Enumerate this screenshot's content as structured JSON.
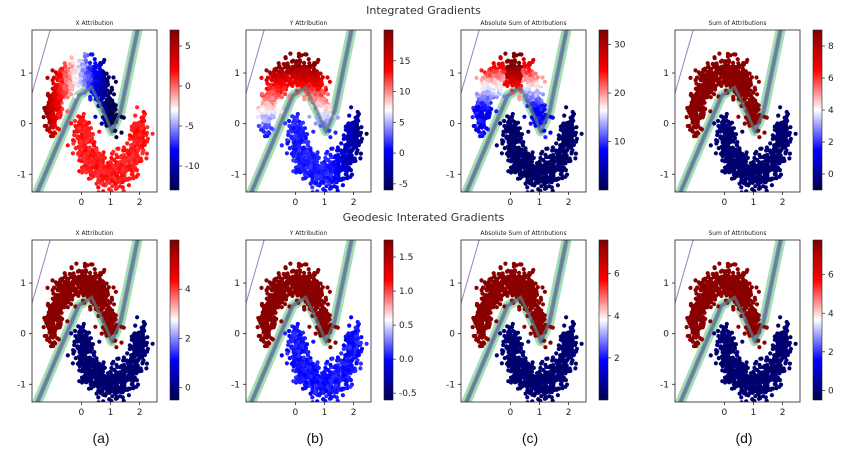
{
  "row_titles": [
    "Integrated Gradients",
    "Geodesic Interated Gradients"
  ],
  "panel_letters": [
    "(a)",
    "(b)",
    "(c)",
    "(d)"
  ],
  "colors": {
    "cmap_seismic": [
      "#00004c",
      "#0000ff",
      "#ffffff",
      "#ff0000",
      "#7f0000"
    ],
    "boundary_band": [
      "#8fd9a8",
      "#b6dea0",
      "#6aa0d0",
      "#9a7fc0"
    ],
    "boundary_center": "#5a7d80"
  },
  "chart_data": [
    {
      "type": "scatter",
      "title": "X Attribution",
      "row": 0,
      "col": 0,
      "xlim": [
        -1.7,
        2.6
      ],
      "ylim": [
        -1.35,
        1.85
      ],
      "xticks": [
        "0",
        "1",
        "2"
      ],
      "yticks": [
        "-1",
        "0",
        "1"
      ],
      "colorbar": {
        "ticks": [
          "5",
          "0",
          "-5",
          "-10"
        ],
        "range": [
          -13,
          7
        ]
      },
      "pattern": "x_signed"
    },
    {
      "type": "scatter",
      "title": "Y Attribution",
      "row": 0,
      "col": 1,
      "xlim": [
        -1.7,
        2.6
      ],
      "ylim": [
        -1.35,
        1.85
      ],
      "xticks": [
        "0",
        "1",
        "2"
      ],
      "yticks": [
        "-1",
        "0",
        "1"
      ],
      "colorbar": {
        "ticks": [
          "15",
          "10",
          "5",
          "0",
          "-5"
        ],
        "range": [
          -6,
          20
        ]
      },
      "pattern": "y_signed"
    },
    {
      "type": "scatter",
      "title": "Absolute Sum of Attributions",
      "row": 0,
      "col": 2,
      "xlim": [
        -1.7,
        2.6
      ],
      "ylim": [
        -1.35,
        1.85
      ],
      "xticks": [
        "0",
        "1",
        "2"
      ],
      "yticks": [
        "-1",
        "0",
        "1"
      ],
      "colorbar": {
        "ticks": [
          "30",
          "20",
          "10"
        ],
        "range": [
          0,
          33
        ]
      },
      "pattern": "abs_sum"
    },
    {
      "type": "scatter",
      "title": "Sum of Attributions",
      "row": 0,
      "col": 3,
      "xlim": [
        -1.7,
        2.6
      ],
      "ylim": [
        -1.35,
        1.85
      ],
      "xticks": [
        "0",
        "1",
        "2"
      ],
      "yticks": [
        "-1",
        "0",
        "1"
      ],
      "colorbar": {
        "ticks": [
          "8",
          "6",
          "4",
          "2",
          "0"
        ],
        "range": [
          -1,
          9
        ]
      },
      "pattern": "class"
    },
    {
      "type": "scatter",
      "title": "X Attribution",
      "row": 1,
      "col": 0,
      "xlim": [
        -1.7,
        2.6
      ],
      "ylim": [
        -1.35,
        1.85
      ],
      "xticks": [
        "0",
        "1",
        "2"
      ],
      "yticks": [
        "-1",
        "0",
        "1"
      ],
      "colorbar": {
        "ticks": [
          "4",
          "2",
          "0"
        ],
        "range": [
          -0.5,
          6
        ]
      },
      "pattern": "class"
    },
    {
      "type": "scatter",
      "title": "Y Attribution",
      "row": 1,
      "col": 1,
      "xlim": [
        -1.7,
        2.6
      ],
      "ylim": [
        -1.35,
        1.85
      ],
      "xticks": [
        "0",
        "1",
        "2"
      ],
      "yticks": [
        "-1",
        "0",
        "1"
      ],
      "colorbar": {
        "ticks": [
          "1.5",
          "1.0",
          "0.5",
          "0.0",
          "-0.5"
        ],
        "range": [
          -0.6,
          1.75
        ]
      },
      "pattern": "class_b"
    },
    {
      "type": "scatter",
      "title": "Absolute Sum of Attributions",
      "row": 1,
      "col": 2,
      "xlim": [
        -1.7,
        2.6
      ],
      "ylim": [
        -1.35,
        1.85
      ],
      "xticks": [
        "0",
        "1",
        "2"
      ],
      "yticks": [
        "-1",
        "0",
        "1"
      ],
      "colorbar": {
        "ticks": [
          "6",
          "4",
          "2"
        ],
        "range": [
          0,
          7.6
        ]
      },
      "pattern": "class"
    },
    {
      "type": "scatter",
      "title": "Sum of Attributions",
      "row": 1,
      "col": 3,
      "xlim": [
        -1.7,
        2.6
      ],
      "ylim": [
        -1.35,
        1.85
      ],
      "xticks": [
        "0",
        "1",
        "2"
      ],
      "yticks": [
        "-1",
        "0",
        "1"
      ],
      "colorbar": {
        "ticks": [
          "6",
          "4",
          "2",
          "0"
        ],
        "range": [
          -0.5,
          7.8
        ]
      },
      "pattern": "class"
    }
  ]
}
